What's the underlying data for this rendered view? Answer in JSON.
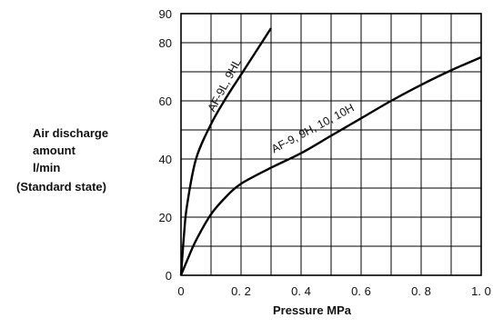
{
  "chart_data": {
    "type": "line",
    "xlabel": "Pressure MPa",
    "ylabel_lines": [
      "Air discharge",
      "amount",
      "l/min",
      "(Standard state)"
    ],
    "xlim": [
      0,
      1.0
    ],
    "ylim": [
      0,
      90
    ],
    "xticks": [
      0,
      0.2,
      0.4,
      0.6,
      0.8,
      1.0
    ],
    "xtick_labels": [
      "0",
      "0. 2",
      "0. 4",
      "0. 6",
      "0. 8",
      "1. 0"
    ],
    "yticks": [
      0,
      20,
      40,
      60,
      80,
      90
    ],
    "ytick_labels": [
      "0",
      "20",
      "40",
      "60",
      "80",
      "90"
    ],
    "grid": true,
    "series": [
      {
        "name": "AF-9L, 9HL",
        "x": [
          0,
          0.01,
          0.02,
          0.05,
          0.1,
          0.15,
          0.2,
          0.25,
          0.3
        ],
        "y": [
          0,
          14,
          24,
          40,
          52,
          61,
          69,
          77,
          85
        ]
      },
      {
        "name": "AF-9, 9H, 10, 10H",
        "x": [
          0,
          0.02,
          0.05,
          0.1,
          0.15,
          0.2,
          0.3,
          0.4,
          0.5,
          0.6,
          0.7,
          0.8,
          0.9,
          1.0
        ],
        "y": [
          0,
          5,
          12,
          21,
          27,
          31.5,
          37,
          42,
          48,
          54,
          60,
          65.5,
          70.5,
          75
        ]
      }
    ]
  }
}
